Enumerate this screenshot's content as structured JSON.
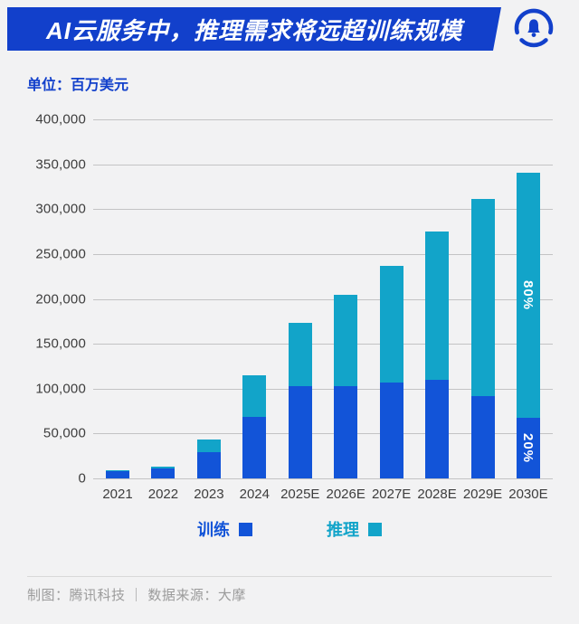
{
  "page": {
    "background": "#f2f2f3"
  },
  "colors": {
    "banner_blue": "#1240cb",
    "train_blue": "#1254d8",
    "inference_cyan": "#12a4c9",
    "gridline": "#c3c3c4",
    "axis_text": "#3d3d3d",
    "footer_text": "#9b9b9b"
  },
  "header": {
    "title": "AI云服务中，推理需求将远超训练规模",
    "logo_icon": "tencent-tech-bell-logo"
  },
  "unit_label": "单位：百万美元",
  "chart_data": {
    "type": "bar",
    "stacked": true,
    "title": "AI云服务中，推理需求将远超训练规模",
    "unit": "百万美元",
    "grid": true,
    "legend_position": "bottom",
    "categories": [
      "2021",
      "2022",
      "2023",
      "2024",
      "2025E",
      "2026E",
      "2027E",
      "2028E",
      "2029E",
      "2030E"
    ],
    "series": [
      {
        "name": "训练",
        "key": "train",
        "color": "#1254d8",
        "values": [
          8000,
          11000,
          29000,
          69000,
          103000,
          103000,
          107000,
          110000,
          92000,
          68000
        ]
      },
      {
        "name": "推理",
        "key": "inference",
        "color": "#12a4c9",
        "values": [
          1000,
          2000,
          14000,
          46000,
          70000,
          102000,
          130000,
          165000,
          219000,
          273000
        ]
      }
    ],
    "totals": [
      9000,
      13000,
      43000,
      115000,
      173000,
      205000,
      237000,
      275000,
      311000,
      341000
    ],
    "ylim": [
      0,
      400000
    ],
    "y_tick_step": 50000,
    "y_ticks": [
      "0",
      "50,000",
      "100,000",
      "150,000",
      "200,000",
      "250,000",
      "300,000",
      "350,000",
      "400,000"
    ],
    "bar_labels": [
      {
        "category": "2030E",
        "series": "推理",
        "text": "80%"
      },
      {
        "category": "2030E",
        "series": "训练",
        "text": "20%"
      }
    ]
  },
  "footer": {
    "text": "制图：腾讯科技 ｜ 数据来源：大摩"
  }
}
